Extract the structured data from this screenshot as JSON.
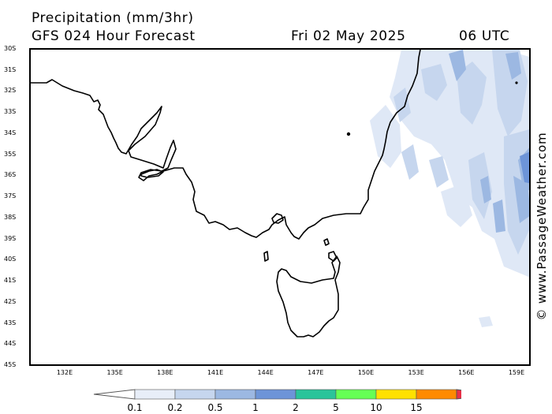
{
  "header": {
    "title": "Precipitation (mm/3hr)",
    "model": "GFS 024 Hour Forecast",
    "date": "Fri 02 May 2025",
    "time": "06 UTC"
  },
  "credit": "© www.PassageWeather.com",
  "map": {
    "lat_labels": [
      "30S",
      "31S",
      "32S",
      "33S",
      "34S",
      "35S",
      "36S",
      "37S",
      "38S",
      "39S",
      "40S",
      "41S",
      "42S",
      "43S",
      "44S",
      "45S"
    ],
    "lon_labels": [
      "132E",
      "135E",
      "138E",
      "141E",
      "144E",
      "147E",
      "150E",
      "153E",
      "156E",
      "159E"
    ],
    "lat_range": [
      -30,
      -45
    ],
    "lon_range": [
      130.2,
      159.8
    ],
    "land_fill": "#ffffff",
    "coast_color": "#000000"
  },
  "legend": {
    "labels": [
      "0.1",
      "0.2",
      "0.5",
      "1",
      "2",
      "5",
      "10",
      "15"
    ],
    "colors": [
      "#ffffff",
      "#e8eef8",
      "#c6d6ee",
      "#9cb8e2",
      "#6d94d8",
      "#2ac49a",
      "#66ff55",
      "#ffe100",
      "#ff8a00",
      "#e83048"
    ]
  }
}
